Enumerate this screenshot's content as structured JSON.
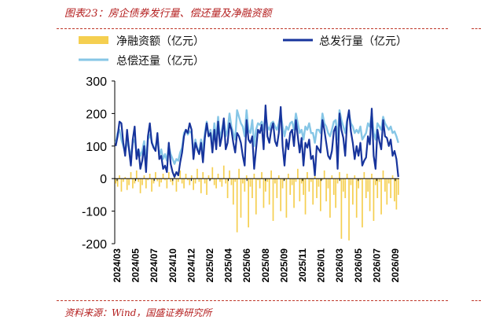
{
  "header": {
    "figure_title": "图表23：房企债券发行量、偿还量及净融资额"
  },
  "footer": {
    "source": "资料来源：Wind，国盛证券研究所"
  },
  "colors": {
    "net_financing": "#f5cf50",
    "total_issuance": "#17349c",
    "total_repayment": "#86c6e6",
    "accent_red": "#b41e1e"
  },
  "chart_data": {
    "type": "bar+line",
    "title": "",
    "xlabel": "",
    "ylabel": "",
    "ylim": [
      -200,
      300
    ],
    "yticks": [
      300,
      200,
      100,
      0,
      -100,
      -200
    ],
    "grid": false,
    "legend_position": "top",
    "x_tick_labels": [
      "2024/03",
      "2024/05",
      "2024/07",
      "2024/10",
      "2024/12",
      "2025/02",
      "2025/04",
      "2025/06",
      "2025/08",
      "2025/09",
      "2025/11",
      "2026/01",
      "2026/03",
      "2026/05",
      "2026/07",
      "2026/09"
    ],
    "series": [
      {
        "name": "净融资额（亿元）",
        "type": "bar",
        "values": [
          -15,
          -25,
          10,
          -40,
          -10,
          5,
          -35,
          -20,
          20,
          -30,
          -15,
          25,
          -10,
          -45,
          -20,
          10,
          -30,
          -5,
          15,
          -40,
          -15,
          20,
          -8,
          -25,
          -12,
          15,
          -5,
          -30,
          20,
          -10,
          -20,
          15,
          -40,
          -10,
          25,
          -15,
          -30,
          15,
          -5,
          -20,
          10,
          -35,
          -15,
          30,
          -10,
          -45,
          20,
          -15,
          -50,
          10,
          -5,
          35,
          -20,
          -30,
          15,
          -10,
          -25,
          40,
          -15,
          -60,
          25,
          -20,
          -80,
          -10,
          -165,
          30,
          -120,
          -15,
          -40,
          10,
          -150,
          -25,
          -60,
          15,
          -110,
          -5,
          -30,
          20,
          -90,
          -40,
          -10,
          -80,
          25,
          -130,
          -15,
          -60,
          10,
          -100,
          -30,
          -5,
          -120,
          15,
          -50,
          -20,
          -90,
          -10,
          30,
          -70,
          -15,
          -50,
          -110,
          20,
          -40,
          -10,
          -80,
          15,
          -60,
          -25,
          -100,
          -5,
          25,
          -70,
          -30,
          -120,
          10,
          -50,
          -90,
          -15,
          20,
          -185,
          -40,
          -60,
          15,
          -190,
          -20,
          -80,
          10,
          -120,
          -30,
          -5,
          -150,
          20,
          -60,
          -40,
          -100,
          15,
          -130,
          -20,
          -60,
          -10,
          -110,
          25,
          -40,
          -80,
          -15,
          -60,
          10,
          -70,
          -95,
          -50
        ]
      },
      {
        "name": "总发行量（亿元）",
        "type": "line",
        "values": [
          100,
          130,
          175,
          170,
          110,
          70,
          150,
          90,
          40,
          120,
          160,
          60,
          90,
          30,
          55,
          100,
          20,
          130,
          170,
          110,
          95,
          85,
          140,
          60,
          70,
          30,
          40,
          20,
          110,
          45,
          20,
          5,
          20,
          10,
          50,
          80,
          130,
          150,
          140,
          170,
          150,
          60,
          110,
          90,
          75,
          110,
          50,
          125,
          170,
          130,
          140,
          80,
          150,
          90,
          175,
          100,
          130,
          185,
          90,
          110,
          170,
          150,
          110,
          80,
          140,
          130,
          110,
          70,
          40,
          180,
          120,
          110,
          130,
          30,
          90,
          150,
          140,
          165,
          90,
          225,
          130,
          110,
          150,
          170,
          115,
          100,
          140,
          220,
          100,
          40,
          120,
          90,
          140,
          150,
          100,
          180,
          130,
          80,
          125,
          40,
          110,
          95,
          120,
          60,
          70,
          10,
          100,
          90,
          80,
          180,
          150,
          110,
          70,
          60,
          85,
          145,
          160,
          30,
          200,
          150,
          125,
          70,
          175,
          210,
          145,
          110,
          60,
          100,
          70,
          110,
          40,
          55,
          65,
          130,
          105,
          215,
          70,
          30,
          150,
          115,
          90,
          180,
          130,
          125,
          100,
          120,
          70,
          85,
          60,
          5
        ]
      },
      {
        "name": "总偿还量（亿元）",
        "type": "line",
        "values": [
          110,
          140,
          150,
          120,
          100,
          80,
          115,
          95,
          65,
          110,
          120,
          80,
          90,
          70,
          85,
          115,
          60,
          120,
          135,
          115,
          95,
          95,
          125,
          70,
          90,
          60,
          75,
          55,
          100,
          75,
          60,
          45,
          60,
          55,
          80,
          95,
          140,
          150,
          135,
          145,
          140,
          80,
          120,
          95,
          80,
          120,
          85,
          140,
          175,
          130,
          150,
          105,
          170,
          120,
          190,
          120,
          150,
          180,
          130,
          150,
          200,
          160,
          140,
          120,
          210,
          190,
          170,
          160,
          130,
          210,
          150,
          140,
          180,
          100,
          150,
          170,
          165,
          175,
          150,
          200,
          160,
          150,
          170,
          175,
          160,
          150,
          170,
          200,
          160,
          130,
          160,
          150,
          170,
          175,
          150,
          200,
          170,
          140,
          150,
          120,
          160,
          150,
          170,
          140,
          140,
          110,
          150,
          150,
          140,
          200,
          170,
          160,
          140,
          130,
          150,
          175,
          180,
          120,
          210,
          180,
          160,
          140,
          180,
          200,
          170,
          160,
          140,
          150,
          140,
          160,
          120,
          130,
          140,
          170,
          160,
          200,
          140,
          120,
          170,
          160,
          150,
          190,
          170,
          160,
          150,
          160,
          140,
          145,
          130,
          110
        ]
      }
    ]
  }
}
